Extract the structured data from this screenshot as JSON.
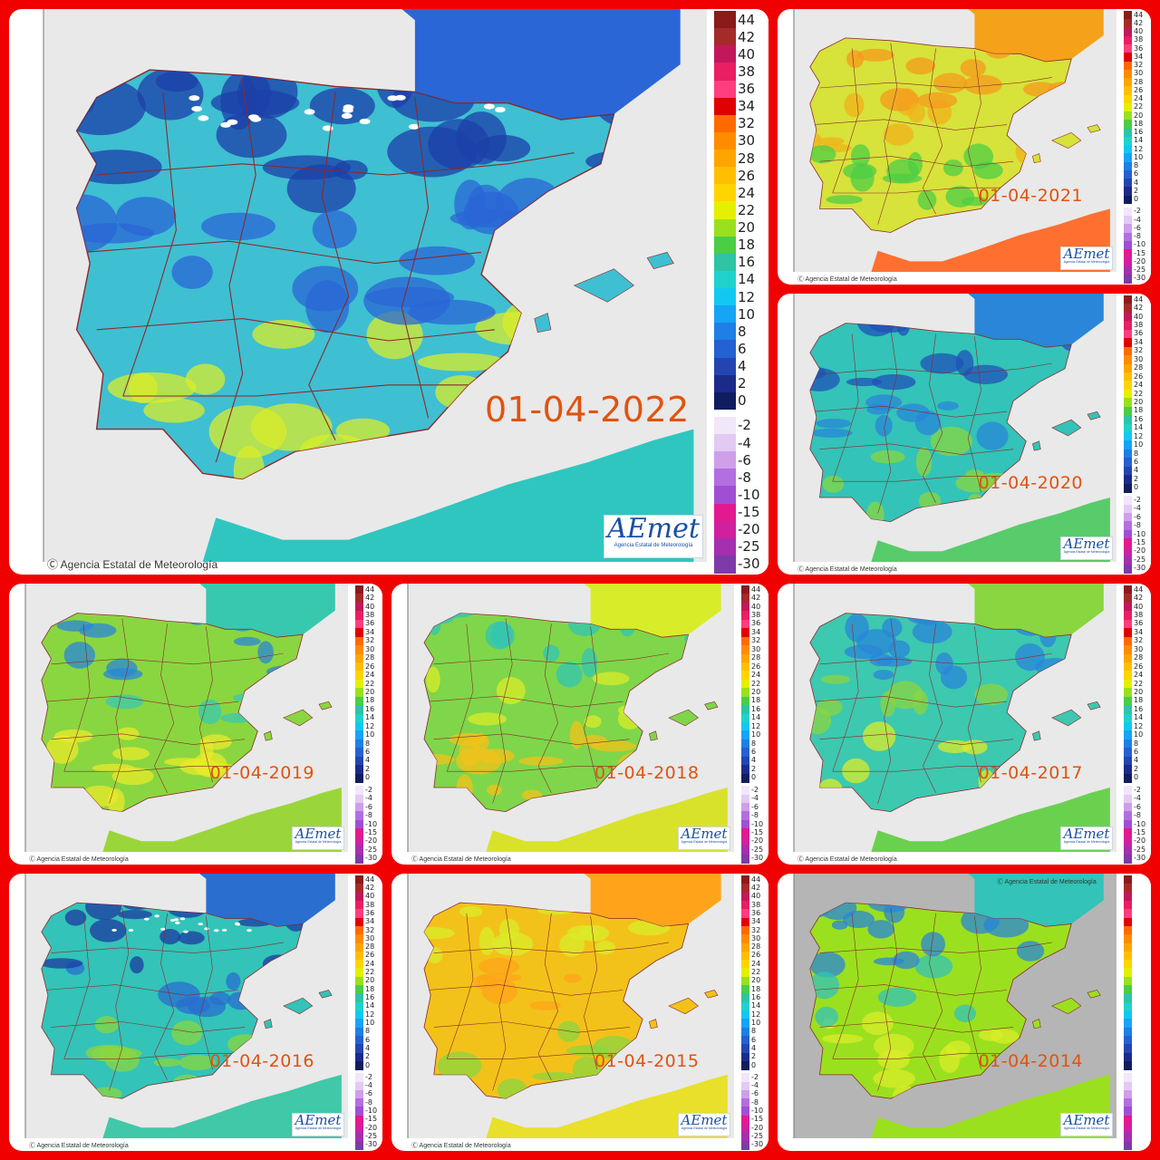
{
  "credit_text": "Agencia Estatal de Meteorología",
  "logo_text": "AEmet",
  "logo_subtext": "Agencia Estatal de Meteorología",
  "scale_ticks_positive": [
    "44",
    "42",
    "40",
    "38",
    "36",
    "34",
    "32",
    "30",
    "28",
    "26",
    "24",
    "22",
    "20",
    "18",
    "16",
    "14",
    "12",
    "10",
    "8",
    "6",
    "4",
    "2",
    "0"
  ],
  "scale_ticks_negative": [
    "-2",
    "-4",
    "-6",
    "-8",
    "-10",
    "-15",
    "-20",
    "-25",
    "-30"
  ],
  "scale_colors_positive": [
    "#8b1a1a",
    "#a52a2a",
    "#c2185b",
    "#e91e63",
    "#ff3d7f",
    "#e00000",
    "#ff6a00",
    "#ff8c00",
    "#ffa500",
    "#ffbf00",
    "#ffd400",
    "#e6ef00",
    "#9be01e",
    "#4ccd46",
    "#2ec4a5",
    "#1fd3cc",
    "#13c8f0",
    "#16a4f5",
    "#1e7fe6",
    "#2461d1",
    "#2445b0",
    "#1c2b8a",
    "#101d5e"
  ],
  "scale_colors_negative": [
    "#f2e6fa",
    "#e3caf3",
    "#cf9fea",
    "#b36ee0",
    "#a04fd4",
    "#e21a8e",
    "#d1209f",
    "#a52fae",
    "#7e3aa6"
  ],
  "colors": {
    "frame": "#f00000",
    "sea": "#e9e9e9",
    "border": "#8b2a2a",
    "date": "#e0530f"
  },
  "maps": [
    {
      "date": "01-04-2022",
      "legend": true
    },
    {
      "date": "01-04-2021",
      "legend": true
    },
    {
      "date": "01-04-2020",
      "legend": true
    },
    {
      "date": "01-04-2019",
      "legend": true
    },
    {
      "date": "01-04-2018",
      "legend": true
    },
    {
      "date": "01-04-2017",
      "legend": true
    },
    {
      "date": "01-04-2016",
      "legend": true
    },
    {
      "date": "01-04-2015",
      "legend": true
    },
    {
      "date": "01-04-2014",
      "legend": true
    }
  ]
}
